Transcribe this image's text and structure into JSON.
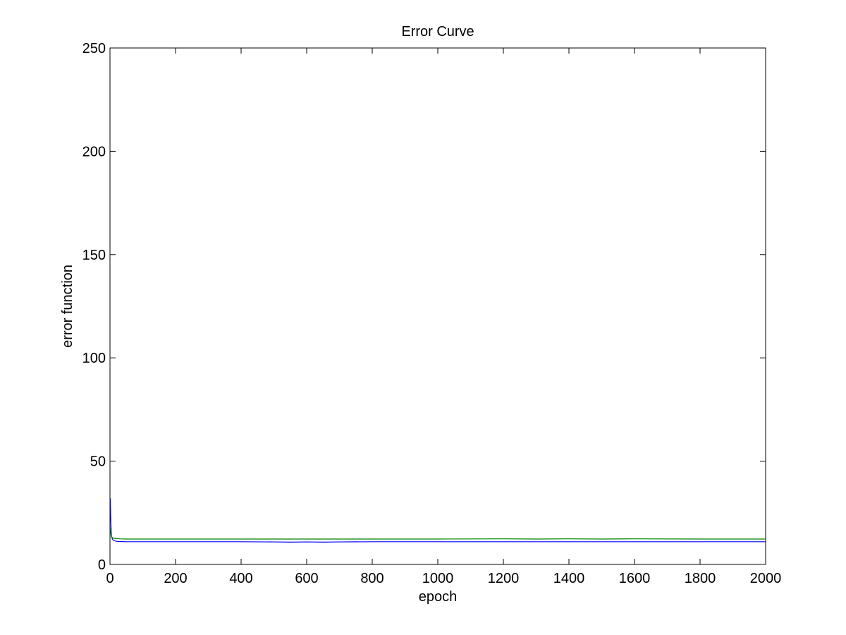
{
  "chart_data": {
    "type": "line",
    "title": "Error Curve",
    "xlabel": "epoch",
    "ylabel": "error function",
    "xlim": [
      0,
      2000
    ],
    "ylim": [
      0,
      250
    ],
    "xticks": [
      0,
      200,
      400,
      600,
      800,
      1000,
      1200,
      1400,
      1600,
      1800,
      2000
    ],
    "yticks": [
      0,
      50,
      100,
      150,
      200,
      250
    ],
    "grid": false,
    "legend": "none",
    "series": [
      {
        "color": "#0000ff",
        "x": [
          1,
          2,
          3,
          4,
          5,
          6,
          8,
          10,
          15,
          20,
          30,
          50,
          100,
          200,
          400,
          500,
          550,
          600,
          650,
          700,
          800,
          1000,
          1200,
          1400,
          1600,
          1800,
          2000
        ],
        "values": [
          32,
          24,
          19,
          15,
          13.5,
          12.8,
          12.2,
          11.8,
          11.4,
          11.2,
          11.1,
          11.0,
          11.0,
          11.0,
          11.0,
          10.9,
          10.8,
          10.9,
          10.8,
          10.9,
          11.0,
          11.0,
          11.0,
          11.0,
          11.0,
          11.0,
          11.0
        ]
      },
      {
        "color": "#008000",
        "x": [
          1,
          2,
          3,
          4,
          5,
          6,
          8,
          10,
          15,
          20,
          30,
          50,
          100,
          200,
          400,
          600,
          800,
          1000,
          1200,
          1300,
          1400,
          1500,
          1600,
          1800,
          2000
        ],
        "values": [
          18,
          16,
          14.5,
          14,
          13.5,
          13.2,
          13.0,
          12.8,
          12.6,
          12.5,
          12.4,
          12.3,
          12.3,
          12.3,
          12.3,
          12.3,
          12.3,
          12.3,
          12.4,
          12.3,
          12.4,
          12.3,
          12.4,
          12.3,
          12.3
        ]
      }
    ]
  }
}
